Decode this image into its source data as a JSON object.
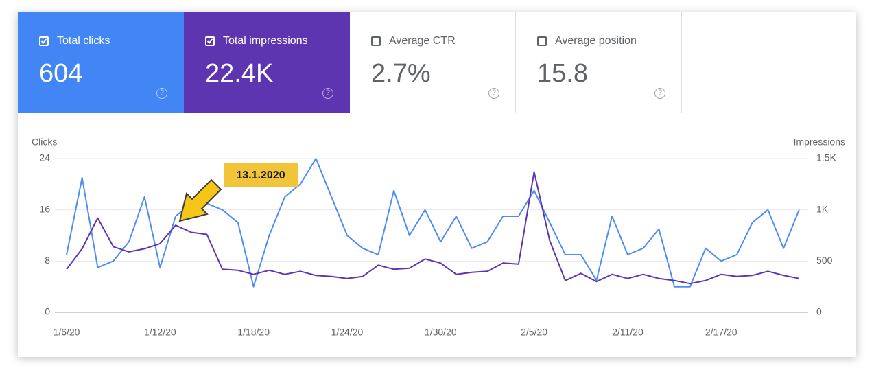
{
  "tiles": [
    {
      "label": "Total clicks",
      "value": "604",
      "checked": true,
      "color": "#4285f4"
    },
    {
      "label": "Total impressions",
      "value": "22.4K",
      "checked": true,
      "color": "#5e35b1"
    },
    {
      "label": "Average CTR",
      "value": "2.7%",
      "checked": false,
      "color": "#ffffff"
    },
    {
      "label": "Average position",
      "value": "15.8",
      "checked": false,
      "color": "#ffffff"
    }
  ],
  "chart_data": {
    "type": "line",
    "y_label": "Clicks",
    "y2_label": "Impressions",
    "categories": [
      "1/6/20",
      null,
      null,
      null,
      null,
      null,
      "1/12/20",
      null,
      null,
      null,
      null,
      null,
      "1/18/20",
      null,
      null,
      null,
      null,
      null,
      "1/24/20",
      null,
      null,
      null,
      null,
      null,
      "1/30/20",
      null,
      null,
      null,
      null,
      null,
      "2/5/20",
      null,
      null,
      null,
      null,
      null,
      "2/11/20",
      null,
      null,
      null,
      null,
      null,
      "2/17/20",
      null,
      null,
      null,
      null,
      null
    ],
    "series": [
      {
        "color": "#4e8df5",
        "values": [
          9,
          21,
          7,
          8,
          11,
          18,
          7,
          15,
          17,
          17,
          16,
          14,
          4,
          12,
          18,
          20,
          24,
          18,
          12,
          10,
          9,
          19,
          12,
          16,
          11,
          15,
          10,
          11,
          15,
          15,
          19,
          14,
          9,
          9,
          5,
          15,
          9,
          10,
          13,
          4,
          4,
          10,
          8,
          9,
          14,
          16,
          10,
          16
        ]
      },
      {
        "color": "#5e35b1",
        "axis": "y2",
        "values": [
          420,
          620,
          920,
          640,
          590,
          620,
          670,
          850,
          780,
          760,
          420,
          410,
          370,
          410,
          370,
          400,
          360,
          350,
          330,
          350,
          460,
          420,
          430,
          520,
          480,
          370,
          390,
          400,
          480,
          470,
          1370,
          700,
          310,
          380,
          300,
          370,
          330,
          370,
          330,
          310,
          280,
          310,
          370,
          350,
          360,
          400,
          360,
          330
        ]
      }
    ],
    "ylim": [
      0,
      24
    ],
    "yticks": [
      0,
      8,
      16,
      24
    ],
    "y2lim": [
      0,
      1500
    ],
    "y2ticks": [
      0,
      500,
      {
        "value": 1000,
        "label": "1K"
      },
      {
        "value": 1500,
        "label": "1.5K"
      }
    ],
    "grid": true,
    "annotations": [
      {
        "text": "13.1.2020"
      }
    ]
  }
}
